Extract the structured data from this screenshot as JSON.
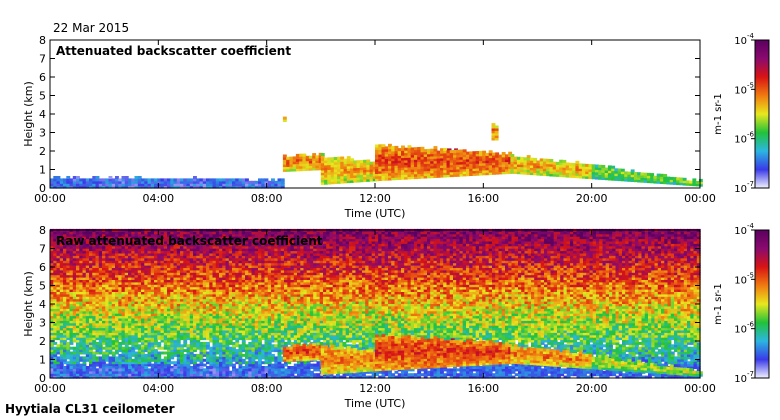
{
  "header": {
    "date": "22 Mar 2015"
  },
  "footer": {
    "site": "Hyytiala CL31 ceilometer"
  },
  "colorscale": [
    "#f2f2ff",
    "#3a3ae8",
    "#2bb6e0",
    "#22c23a",
    "#e8e81e",
    "#f07a10",
    "#d81414",
    "#8a0a6e",
    "#5a0060"
  ],
  "chart_data": [
    {
      "type": "heatmap",
      "title": "Attenuated backscatter coefficient",
      "xlabel": "Time (UTC)",
      "ylabel": "Height (km)",
      "xticks": [
        "00:00",
        "04:00",
        "08:00",
        "12:00",
        "16:00",
        "20:00",
        "00:00"
      ],
      "xlim": [
        0,
        24
      ],
      "ylim": [
        0,
        8
      ],
      "yticks": [
        0,
        1,
        2,
        3,
        4,
        5,
        6,
        7,
        8
      ],
      "colorbar": {
        "label": "m-1 sr-1",
        "scale": "log",
        "range": [
          1e-07,
          0.0001
        ],
        "ticks": [
          "10",
          "10",
          "10",
          "10"
        ],
        "exponents": [
          "-7",
          "-6",
          "-5",
          "-4"
        ]
      },
      "noise_floor": false,
      "features": [
        {
          "kind": "boundary-layer",
          "t": [
            0,
            8.6
          ],
          "top": [
            0.55,
            0.4
          ],
          "level": 0.15
        },
        {
          "kind": "aerosol-layer",
          "t": [
            8.6,
            10
          ],
          "base": [
            0.9,
            1.0
          ],
          "top": [
            1.7,
            1.8
          ],
          "level": 0.65
        },
        {
          "kind": "aerosol-layer",
          "t": [
            10,
            12
          ],
          "base": [
            0.2,
            0.4
          ],
          "top": [
            1.7,
            1.4
          ],
          "level": 0.6
        },
        {
          "kind": "cloud",
          "t": [
            12.5,
            13.5
          ],
          "base": 0.9,
          "top": 1.8,
          "level": 0.95
        },
        {
          "kind": "cloud",
          "t": [
            14.2,
            15.0
          ],
          "base": 1.1,
          "top": 2.0,
          "level": 0.95
        },
        {
          "kind": "aerosol-layer",
          "t": [
            12,
            17
          ],
          "base": [
            0.4,
            0.8
          ],
          "top": [
            2.3,
            1.8
          ],
          "level": 0.7
        },
        {
          "kind": "aerosol-layer",
          "t": [
            17,
            20
          ],
          "base": [
            0.8,
            0.5
          ],
          "top": [
            1.7,
            1.2
          ],
          "level": 0.6
        },
        {
          "kind": "aerosol-layer",
          "t": [
            20,
            24
          ],
          "base": [
            0.5,
            0.1
          ],
          "top": [
            1.2,
            0.3
          ],
          "level": 0.45
        },
        {
          "kind": "aerosol-patch",
          "t": [
            8.6,
            8.7
          ],
          "base": 3.6,
          "top": 3.8,
          "level": 0.6
        },
        {
          "kind": "aerosol-patch",
          "t": [
            16.3,
            16.5
          ],
          "base": 2.6,
          "top": 3.4,
          "level": 0.65
        }
      ]
    },
    {
      "type": "heatmap",
      "title": "Raw attenuated backscatter coefficient",
      "xlabel": "Time (UTC)",
      "ylabel": "Height (km)",
      "xticks": [
        "00:00",
        "04:00",
        "08:00",
        "12:00",
        "16:00",
        "20:00",
        "00:00"
      ],
      "xlim": [
        0,
        24
      ],
      "ylim": [
        0,
        8
      ],
      "yticks": [
        0,
        1,
        2,
        3,
        4,
        5,
        6,
        7,
        8
      ],
      "colorbar": {
        "label": "m-1 sr-1",
        "scale": "log",
        "range": [
          1e-07,
          0.0001
        ],
        "ticks": [
          "10",
          "10",
          "10",
          "10"
        ],
        "exponents": [
          "-7",
          "-6",
          "-5",
          "-4"
        ]
      },
      "noise_floor": true,
      "features": [
        {
          "kind": "boundary-layer",
          "t": [
            0,
            8.6
          ],
          "top": [
            0.55,
            0.4
          ],
          "level": 0.15
        },
        {
          "kind": "aerosol-layer",
          "t": [
            8.6,
            10
          ],
          "base": [
            0.9,
            1.0
          ],
          "top": [
            1.7,
            1.8
          ],
          "level": 0.7
        },
        {
          "kind": "aerosol-layer",
          "t": [
            10,
            12
          ],
          "base": [
            0.2,
            0.4
          ],
          "top": [
            1.7,
            1.4
          ],
          "level": 0.65
        },
        {
          "kind": "cloud",
          "t": [
            12.5,
            13.5
          ],
          "base": 0.9,
          "top": 1.8,
          "level": 0.95
        },
        {
          "kind": "cloud",
          "t": [
            14.2,
            15.0
          ],
          "base": 1.1,
          "top": 2.0,
          "level": 0.95
        },
        {
          "kind": "aerosol-layer",
          "t": [
            12,
            17
          ],
          "base": [
            0.4,
            0.8
          ],
          "top": [
            2.3,
            1.8
          ],
          "level": 0.72
        },
        {
          "kind": "aerosol-layer",
          "t": [
            17,
            20
          ],
          "base": [
            0.8,
            0.5
          ],
          "top": [
            1.7,
            1.2
          ],
          "level": 0.65
        },
        {
          "kind": "aerosol-layer",
          "t": [
            20,
            24
          ],
          "base": [
            0.5,
            0.1
          ],
          "top": [
            1.2,
            0.3
          ],
          "level": 0.5
        }
      ]
    }
  ]
}
